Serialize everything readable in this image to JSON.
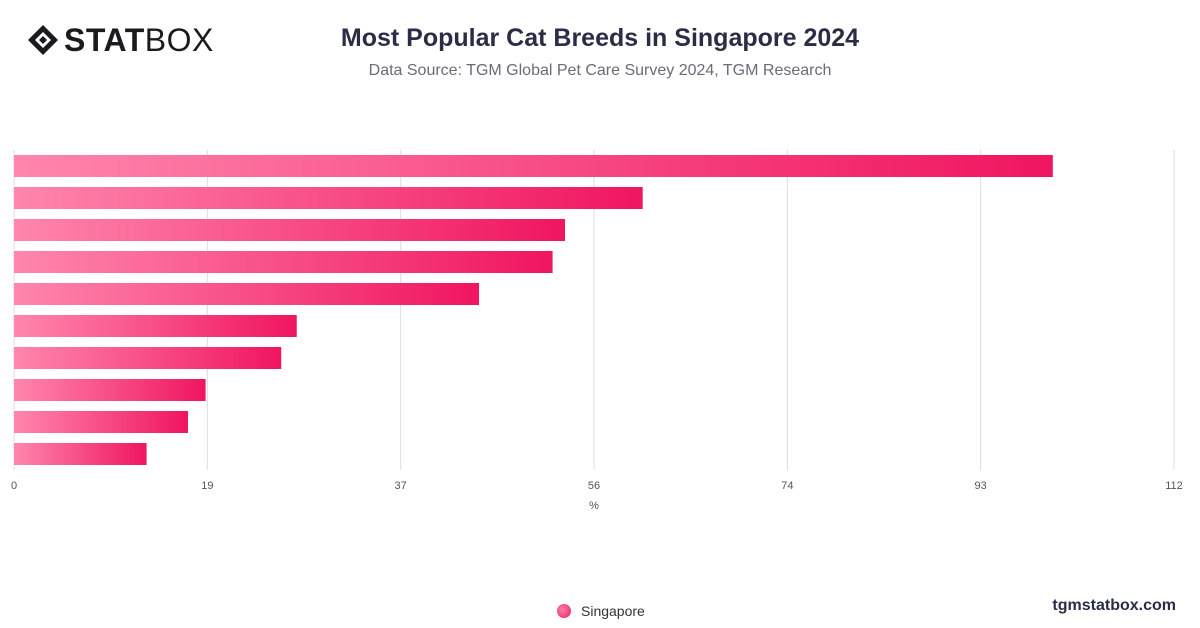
{
  "brand": {
    "logo_bold": "STAT",
    "logo_light": "BOX",
    "site": "tgmstatbox.com"
  },
  "title": "Most Popular Cat Breeds in Singapore 2024",
  "subtitle": "Data Source: TGM Global Pet Care Survey 2024, TGM Research",
  "legend": {
    "label": "Singapore",
    "color": "#ef1c5e"
  },
  "colors": {
    "bar_start": "#ff86ad",
    "bar_end": "#f01560",
    "grid": "#dddddd"
  },
  "chart_data": {
    "type": "bar",
    "orientation": "horizontal",
    "series": [
      {
        "name": "Singapore",
        "values": [
          100.3,
          60.7,
          53.2,
          52.0,
          44.9,
          27.3,
          25.8,
          18.5,
          16.8,
          12.8
        ]
      }
    ],
    "xlabel": "%",
    "xlim": [
      0,
      112
    ],
    "xticks": [
      "0",
      "19",
      "37",
      "56",
      "74",
      "93",
      "112"
    ],
    "grid": true,
    "legend_position": "bottom"
  }
}
